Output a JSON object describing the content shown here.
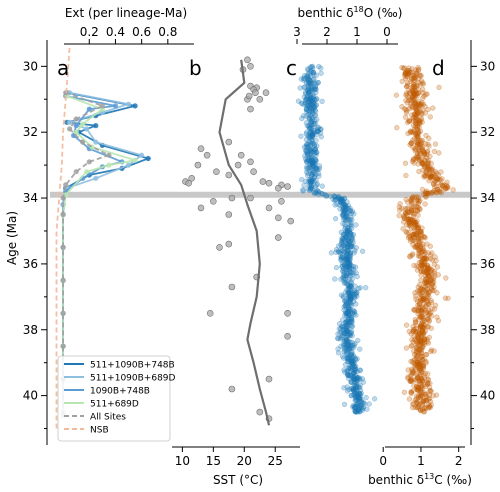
{
  "figure": {
    "panels": [
      {
        "letter": "a"
      },
      {
        "letter": "b"
      },
      {
        "letter": "c"
      },
      {
        "letter": "d"
      }
    ],
    "y_axis": {
      "label": "Age (Ma)",
      "range": [
        29.2,
        41.5
      ],
      "ticks": [
        30,
        32,
        34,
        36,
        38,
        40
      ],
      "tick_labels": [
        "30",
        "32",
        "34",
        "36",
        "38",
        "40"
      ],
      "minor_ticks": [
        31,
        33,
        35,
        37,
        39,
        41
      ],
      "inverted": true,
      "repeated_on_right": true
    },
    "eot_band": {
      "age": 33.9,
      "color": "#c8c8c8"
    }
  },
  "chart_data": [
    {
      "panel": "a",
      "type": "line",
      "title": "",
      "xlabel": "Ext (per lineage-Ma)",
      "xlabel_position": "top",
      "xlim": [
        -0.1,
        1.0
      ],
      "xticks": [
        0.2,
        0.4,
        0.6,
        0.8
      ],
      "xtick_labels": [
        "0.2",
        "0.4",
        "0.6",
        "0.8"
      ],
      "legend_position": "lower-left",
      "series": [
        {
          "name": "511+1090B+748B",
          "color": "#1f77b4",
          "marker": true,
          "points": [
            [
              0.0,
              40.5
            ],
            [
              0.0,
              39.5
            ],
            [
              0.0,
              38.5
            ],
            [
              0.0,
              37.5
            ],
            [
              0.0,
              36.5
            ],
            [
              0.0,
              35.5
            ],
            [
              0.0,
              34.5
            ],
            [
              0.0,
              34.2
            ],
            [
              0.02,
              33.7
            ],
            [
              0.2,
              33.3
            ],
            [
              0.45,
              33.1
            ],
            [
              0.65,
              32.8
            ],
            [
              0.3,
              32.4
            ],
            [
              0.12,
              32.0
            ],
            [
              0.25,
              31.8
            ],
            [
              0.03,
              31.7
            ],
            [
              0.25,
              31.5
            ],
            [
              0.55,
              31.2
            ],
            [
              0.03,
              30.8
            ]
          ]
        },
        {
          "name": "511+1090B+689D",
          "color": "#8fbfe0",
          "marker": true,
          "points": [
            [
              0.0,
              40.5
            ],
            [
              0.0,
              39.5
            ],
            [
              0.0,
              38.5
            ],
            [
              0.0,
              37.5
            ],
            [
              0.0,
              36.5
            ],
            [
              0.0,
              35.5
            ],
            [
              0.0,
              34.5
            ],
            [
              0.0,
              34.2
            ],
            [
              0.03,
              33.7
            ],
            [
              0.25,
              33.4
            ],
            [
              0.5,
              33.0
            ],
            [
              0.6,
              32.7
            ],
            [
              0.25,
              32.3
            ],
            [
              0.18,
              31.9
            ],
            [
              0.05,
              31.7
            ],
            [
              0.3,
              31.4
            ],
            [
              0.5,
              31.15
            ],
            [
              0.05,
              30.8
            ]
          ]
        },
        {
          "name": "1090B+748B",
          "color": "#5b9bd5",
          "marker": true,
          "points": [
            [
              0.0,
              40.5
            ],
            [
              0.0,
              38.5
            ],
            [
              0.0,
              36.5
            ],
            [
              0.0,
              34.5
            ],
            [
              0.02,
              33.8
            ],
            [
              0.15,
              33.4
            ],
            [
              0.3,
              33.05
            ],
            [
              0.45,
              32.9
            ],
            [
              0.2,
              32.5
            ],
            [
              0.08,
              32.1
            ],
            [
              0.1,
              31.8
            ],
            [
              0.2,
              31.3
            ],
            [
              0.4,
              31.2
            ],
            [
              0.02,
              30.9
            ]
          ]
        },
        {
          "name": "511+689D",
          "color": "#b8e6b0",
          "marker": true,
          "points": [
            [
              0.0,
              40.5
            ],
            [
              0.0,
              38.5
            ],
            [
              0.0,
              36.5
            ],
            [
              0.0,
              34.5
            ],
            [
              0.02,
              33.9
            ],
            [
              0.18,
              33.2
            ],
            [
              0.35,
              33.0
            ],
            [
              0.55,
              32.85
            ],
            [
              0.22,
              32.45
            ],
            [
              0.1,
              32.0
            ],
            [
              0.15,
              31.75
            ],
            [
              0.3,
              31.3
            ],
            [
              0.03,
              30.9
            ]
          ]
        },
        {
          "name": "All Sites",
          "color": "#a0a0a0",
          "dashed": true,
          "marker": true,
          "points": [
            [
              0.0,
              40.6
            ],
            [
              0.0,
              39.5
            ],
            [
              0.0,
              38.5
            ],
            [
              0.0,
              37.5
            ],
            [
              0.0,
              36.5
            ],
            [
              0.0,
              35.5
            ],
            [
              0.0,
              34.5
            ],
            [
              0.0,
              34.0
            ],
            [
              0.02,
              33.6
            ],
            [
              0.1,
              33.2
            ],
            [
              0.2,
              32.9
            ],
            [
              0.35,
              32.7
            ],
            [
              0.15,
              32.3
            ],
            [
              0.05,
              31.9
            ],
            [
              0.1,
              31.6
            ],
            [
              0.3,
              31.2
            ],
            [
              0.02,
              30.8
            ]
          ]
        },
        {
          "name": "NSB",
          "color": "#f4b89a",
          "dashed": true,
          "marker": false,
          "points": [
            [
              -0.05,
              41.0
            ],
            [
              -0.05,
              39.0
            ],
            [
              -0.05,
              37.0
            ],
            [
              -0.05,
              35.0
            ],
            [
              -0.03,
              34.0
            ],
            [
              -0.01,
              33.0
            ],
            [
              0.0,
              32.0
            ],
            [
              0.02,
              31.0
            ],
            [
              0.04,
              30.0
            ],
            [
              0.05,
              29.4
            ]
          ]
        }
      ]
    },
    {
      "panel": "b",
      "type": "scatter",
      "title": "",
      "xlabel": "SST (°C)",
      "xlabel_position": "bottom",
      "xlim": [
        8,
        29
      ],
      "xticks": [
        10,
        15,
        20,
        25
      ],
      "xtick_labels": [
        "10",
        "15",
        "20",
        "25"
      ],
      "series": [
        {
          "name": "",
          "color": "#808080",
          "kind": "points",
          "points": [
            [
              13.0,
              32.5
            ],
            [
              14.0,
              32.7
            ],
            [
              12.5,
              33.0
            ],
            [
              11.5,
              33.4
            ],
            [
              10.5,
              33.5
            ],
            [
              11.0,
              33.55
            ],
            [
              15.5,
              33.2
            ],
            [
              17.5,
              33.3
            ],
            [
              19.0,
              33.0
            ],
            [
              21.5,
              33.2
            ],
            [
              20.5,
              31.0
            ],
            [
              21.0,
              30.6
            ],
            [
              22.0,
              30.65
            ],
            [
              21.5,
              30.7
            ],
            [
              21.8,
              30.8
            ],
            [
              20.8,
              30.9
            ],
            [
              22.5,
              31.0
            ],
            [
              21.0,
              31.3
            ],
            [
              23.5,
              30.8
            ],
            [
              17.5,
              32.3
            ],
            [
              19.5,
              32.7
            ],
            [
              21.0,
              32.9
            ],
            [
              23.0,
              33.5
            ],
            [
              24.0,
              33.55
            ],
            [
              26.0,
              33.6
            ],
            [
              25.5,
              33.7
            ],
            [
              27.0,
              33.65
            ],
            [
              15.0,
              34.1
            ],
            [
              13.0,
              34.3
            ],
            [
              17.5,
              34.5
            ],
            [
              18.0,
              34.0
            ],
            [
              21.0,
              34.0
            ],
            [
              24.0,
              34.3
            ],
            [
              26.0,
              34.1
            ],
            [
              25.5,
              34.6
            ],
            [
              27.5,
              34.7
            ],
            [
              16.0,
              35.5
            ],
            [
              17.5,
              35.4
            ],
            [
              25.5,
              35.2
            ],
            [
              22.0,
              36.4
            ],
            [
              18.0,
              36.7
            ],
            [
              14.5,
              37.5
            ],
            [
              27.0,
              37.5
            ],
            [
              27.0,
              38.2
            ],
            [
              24.0,
              39.5
            ],
            [
              18.0,
              39.8
            ],
            [
              22.5,
              40.5
            ],
            [
              24.0,
              40.7
            ],
            [
              20.5,
              29.8
            ],
            [
              21.0,
              30.0
            ],
            [
              19.8,
              30.1
            ]
          ]
        },
        {
          "name": "",
          "color": "#808080",
          "kind": "smooth",
          "points": [
            [
              19.5,
              29.8
            ],
            [
              20.0,
              30.5
            ],
            [
              17.0,
              31.0
            ],
            [
              16.0,
              32.0
            ],
            [
              17.5,
              33.0
            ],
            [
              19.5,
              33.6
            ],
            [
              20.5,
              34.2
            ],
            [
              22.0,
              35.0
            ],
            [
              22.5,
              36.0
            ],
            [
              22.0,
              37.0
            ],
            [
              21.0,
              37.8
            ],
            [
              20.5,
              38.3
            ],
            [
              21.5,
              39.0
            ],
            [
              22.5,
              39.8
            ],
            [
              23.5,
              40.5
            ],
            [
              24.0,
              40.9
            ]
          ]
        }
      ]
    },
    {
      "panel": "c",
      "type": "scatter",
      "title": "",
      "xlabel": "benthic δ18O (‰)",
      "xlabel_position": "top",
      "xlim": [
        3.3,
        -0.6
      ],
      "xticks": [
        3,
        2,
        1,
        0
      ],
      "xtick_labels": [
        "3",
        "2",
        "1",
        "0"
      ],
      "series": [
        {
          "name": "",
          "color": "#1a78b5",
          "profile": [
            [
              30.0,
              2.6
            ],
            [
              30.5,
              2.5
            ],
            [
              31.0,
              2.55
            ],
            [
              31.5,
              2.55
            ],
            [
              32.0,
              2.5
            ],
            [
              32.5,
              2.55
            ],
            [
              33.0,
              2.5
            ],
            [
              33.5,
              2.55
            ],
            [
              33.8,
              2.5
            ],
            [
              34.0,
              1.6
            ],
            [
              34.3,
              1.4
            ],
            [
              34.8,
              1.3
            ],
            [
              35.0,
              1.35
            ],
            [
              35.5,
              1.3
            ],
            [
              36.0,
              1.4
            ],
            [
              36.5,
              1.25
            ],
            [
              37.0,
              1.2
            ],
            [
              37.5,
              1.25
            ],
            [
              38.0,
              1.35
            ],
            [
              38.5,
              1.3
            ],
            [
              39.0,
              1.2
            ],
            [
              39.5,
              1.1
            ],
            [
              40.0,
              1.0
            ],
            [
              40.5,
              0.9
            ]
          ],
          "spread": 0.28,
          "n_points": 1050
        }
      ]
    },
    {
      "panel": "d",
      "type": "scatter",
      "title": "",
      "xlabel": "benthic δ13C (‰)",
      "xlabel_position": "bottom",
      "xlim": [
        -0.35,
        2.3
      ],
      "xticks": [
        0,
        1,
        2
      ],
      "xtick_labels": [
        "0",
        "1",
        "2"
      ],
      "series": [
        {
          "name": "",
          "color": "#c05a00",
          "profile": [
            [
              30.0,
              0.7
            ],
            [
              30.5,
              0.8
            ],
            [
              31.0,
              0.8
            ],
            [
              31.5,
              0.9
            ],
            [
              32.0,
              0.85
            ],
            [
              32.5,
              0.95
            ],
            [
              33.0,
              1.1
            ],
            [
              33.5,
              1.4
            ],
            [
              33.7,
              1.6
            ],
            [
              34.0,
              0.9
            ],
            [
              34.5,
              0.65
            ],
            [
              35.0,
              0.85
            ],
            [
              35.5,
              1.0
            ],
            [
              36.0,
              1.1
            ],
            [
              36.5,
              1.2
            ],
            [
              37.0,
              1.1
            ],
            [
              37.5,
              1.05
            ],
            [
              38.0,
              1.0
            ],
            [
              38.5,
              1.0
            ],
            [
              39.0,
              0.95
            ],
            [
              39.5,
              0.95
            ],
            [
              40.0,
              1.0
            ],
            [
              40.5,
              1.0
            ]
          ],
          "spread": 0.3,
          "n_points": 1050
        }
      ]
    }
  ]
}
